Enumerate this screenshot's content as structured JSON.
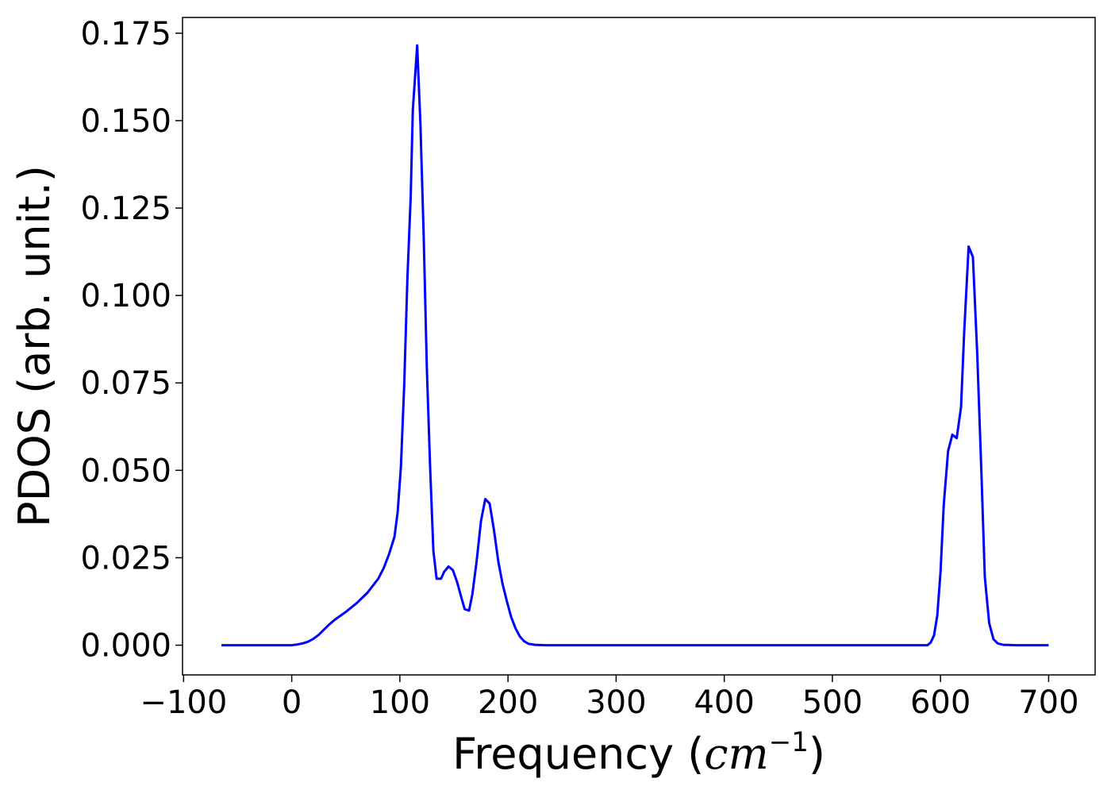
{
  "chart_data": {
    "type": "line",
    "xlabel_prefix": "Frequency (",
    "xlabel_math": "cm",
    "xlabel_exp": "−1",
    "xlabel_suffix": ")",
    "ylabel": "PDOS (arb. unit.)",
    "xlim": [
      -101,
      743
    ],
    "ylim": [
      -0.0085,
      0.1795
    ],
    "xticks": [
      -100,
      0,
      100,
      200,
      300,
      400,
      500,
      600,
      700
    ],
    "xtick_labels": [
      "−100",
      "0",
      "100",
      "200",
      "300",
      "400",
      "500",
      "600",
      "700"
    ],
    "yticks": [
      0.0,
      0.025,
      0.05,
      0.075,
      0.1,
      0.125,
      0.15,
      0.175
    ],
    "ytick_labels": [
      "0.000",
      "0.025",
      "0.050",
      "0.075",
      "0.100",
      "0.125",
      "0.150",
      "0.175"
    ],
    "grid": false,
    "series": [
      {
        "color": "#0000ff",
        "points": [
          [
            -65,
            0.0
          ],
          [
            -40,
            0.0
          ],
          [
            -20,
            0.0
          ],
          [
            0,
            0.0
          ],
          [
            5,
            0.0002
          ],
          [
            10,
            0.0005
          ],
          [
            15,
            0.001
          ],
          [
            20,
            0.0018
          ],
          [
            25,
            0.003
          ],
          [
            30,
            0.0045
          ],
          [
            35,
            0.006
          ],
          [
            40,
            0.0073
          ],
          [
            50,
            0.0095
          ],
          [
            60,
            0.012
          ],
          [
            70,
            0.015
          ],
          [
            80,
            0.019
          ],
          [
            85,
            0.022
          ],
          [
            90,
            0.026
          ],
          [
            95,
            0.031
          ],
          [
            98,
            0.038
          ],
          [
            101,
            0.051
          ],
          [
            104,
            0.074
          ],
          [
            107,
            0.105
          ],
          [
            110,
            0.128
          ],
          [
            112,
            0.153
          ],
          [
            116,
            0.1715
          ],
          [
            119,
            0.149
          ],
          [
            122,
            0.117
          ],
          [
            125,
            0.079
          ],
          [
            128,
            0.051
          ],
          [
            131,
            0.027
          ],
          [
            134,
            0.019
          ],
          [
            138,
            0.019
          ],
          [
            141,
            0.021
          ],
          [
            145,
            0.0225
          ],
          [
            149,
            0.0215
          ],
          [
            153,
            0.018
          ],
          [
            157,
            0.0135
          ],
          [
            160,
            0.0103
          ],
          [
            164,
            0.0099
          ],
          [
            167,
            0.0145
          ],
          [
            171,
            0.024
          ],
          [
            175,
            0.0355
          ],
          [
            179,
            0.0418
          ],
          [
            183,
            0.0405
          ],
          [
            187,
            0.033
          ],
          [
            191,
            0.024
          ],
          [
            195,
            0.0175
          ],
          [
            199,
            0.0125
          ],
          [
            203,
            0.008
          ],
          [
            207,
            0.0048
          ],
          [
            211,
            0.0025
          ],
          [
            215,
            0.0011
          ],
          [
            219,
            0.0004
          ],
          [
            225,
            0.0001
          ],
          [
            235,
            0.0
          ],
          [
            400,
            0.0
          ],
          [
            588,
            0.0
          ],
          [
            591,
            0.0008
          ],
          [
            594,
            0.0028
          ],
          [
            597,
            0.0085
          ],
          [
            600,
            0.021
          ],
          [
            603,
            0.04
          ],
          [
            607,
            0.0555
          ],
          [
            611,
            0.0602
          ],
          [
            615,
            0.0592
          ],
          [
            619,
            0.068
          ],
          [
            622,
            0.09
          ],
          [
            626,
            0.114
          ],
          [
            630,
            0.111
          ],
          [
            634,
            0.083
          ],
          [
            638,
            0.048
          ],
          [
            641,
            0.0195
          ],
          [
            645,
            0.0063
          ],
          [
            649,
            0.0017
          ],
          [
            653,
            0.0005
          ],
          [
            658,
            0.0001
          ],
          [
            670,
            0.0
          ],
          [
            700,
            0.0
          ]
        ]
      }
    ]
  }
}
